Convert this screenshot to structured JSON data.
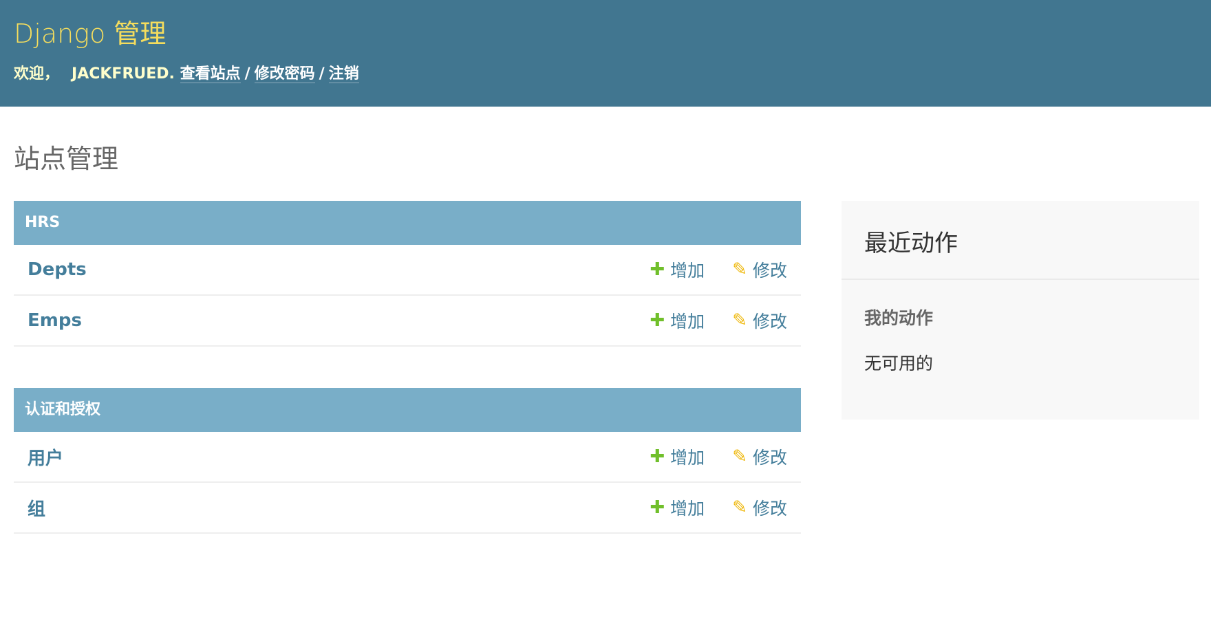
{
  "header": {
    "brand": "Django 管理",
    "welcome": "欢迎，",
    "username": "JACKFRUED",
    "period": ".",
    "links": [
      "查看站点",
      "修改密码",
      "注销"
    ],
    "separator": "/"
  },
  "page_title": "站点管理",
  "modules": [
    {
      "caption": "HRS",
      "models": [
        {
          "name": "Depts",
          "add": "增加",
          "change": "修改"
        },
        {
          "name": "Emps",
          "add": "增加",
          "change": "修改"
        }
      ]
    },
    {
      "caption": "认证和授权",
      "models": [
        {
          "name": "用户",
          "add": "增加",
          "change": "修改"
        },
        {
          "name": "组",
          "add": "增加",
          "change": "修改"
        }
      ]
    }
  ],
  "recent": {
    "title": "最近动作",
    "subtitle": "我的动作",
    "empty": "无可用的"
  },
  "icons": {
    "add": "plus-icon",
    "change": "pencil-icon"
  },
  "colors": {
    "header_bg": "#417690",
    "brand": "#f5dd5d",
    "module_header": "#79aec8",
    "link": "#447e9b",
    "add_icon": "#70bf2b",
    "change_icon": "#efb80b"
  }
}
